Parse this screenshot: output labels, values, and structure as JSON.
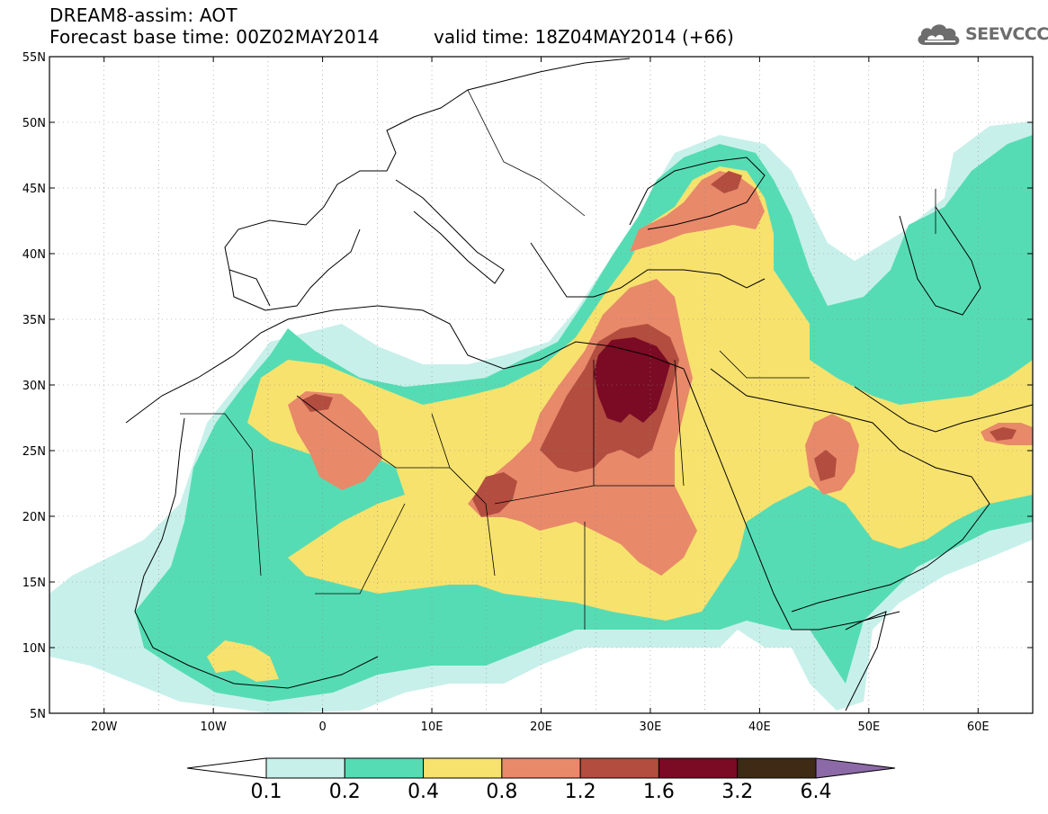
{
  "header": {
    "title": "DREAM8-assim: AOT",
    "base_time": "Forecast base time: 00Z02MAY2014",
    "valid_time": "valid time: 18Z04MAY2014 (+66)"
  },
  "logo": {
    "text": "SEEVCCC",
    "icon": "cloud-logo-icon"
  },
  "map": {
    "lon_range": [
      -25,
      65
    ],
    "lat_range": [
      5,
      55
    ],
    "lat_ticks": [
      {
        "value": 55,
        "label": "55N"
      },
      {
        "value": 50,
        "label": "50N"
      },
      {
        "value": 45,
        "label": "45N"
      },
      {
        "value": 40,
        "label": "40N"
      },
      {
        "value": 35,
        "label": "35N"
      },
      {
        "value": 30,
        "label": "30N"
      },
      {
        "value": 25,
        "label": "25N"
      },
      {
        "value": 20,
        "label": "20N"
      },
      {
        "value": 15,
        "label": "15N"
      },
      {
        "value": 10,
        "label": "10N"
      },
      {
        "value": 5,
        "label": "5N"
      }
    ],
    "lon_ticks": [
      {
        "value": -20,
        "label": "20W"
      },
      {
        "value": -10,
        "label": "10W"
      },
      {
        "value": 0,
        "label": "0"
      },
      {
        "value": 10,
        "label": "10E"
      },
      {
        "value": 20,
        "label": "20E"
      },
      {
        "value": 30,
        "label": "30E"
      },
      {
        "value": 40,
        "label": "40E"
      },
      {
        "value": 50,
        "label": "50E"
      },
      {
        "value": 60,
        "label": "60E"
      }
    ],
    "grid_lon_step": 5,
    "grid_lat_step": 5
  },
  "colorbar": {
    "levels": [
      "0.1",
      "0.2",
      "0.4",
      "0.8",
      "1.2",
      "1.6",
      "3.2",
      "6.4"
    ],
    "colors": [
      "#ffffff",
      "#c8f0ea",
      "#56dcb4",
      "#f7e26e",
      "#e8896a",
      "#b24d3f",
      "#7b0a24",
      "#3e2a15",
      "#8c6aa8"
    ]
  }
}
